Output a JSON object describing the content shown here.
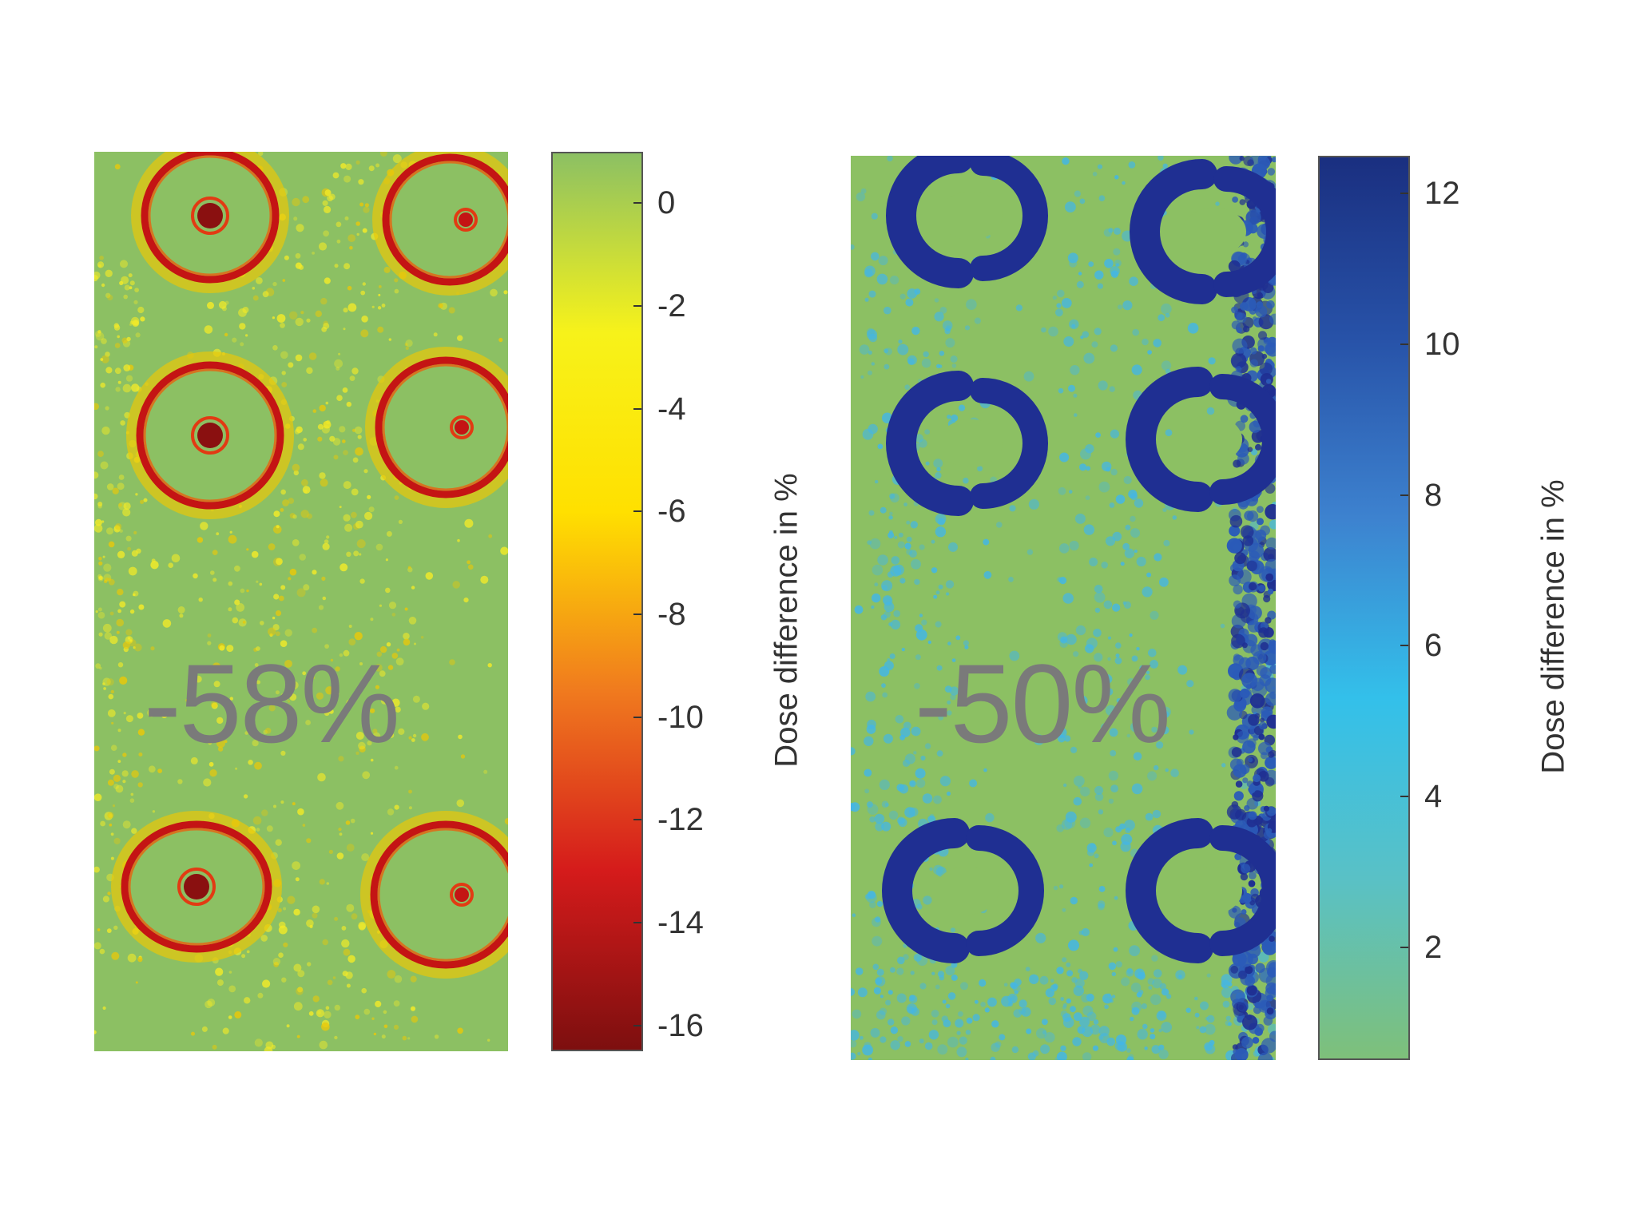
{
  "chart_data": [
    {
      "type": "heatmap",
      "title": "",
      "annotation": "-58%",
      "colorbar": {
        "label": "Dose difference in %",
        "range": [
          -16.5,
          1
        ],
        "ticks": [
          0,
          -2,
          -4,
          -6,
          -8,
          -10,
          -12,
          -14,
          -16
        ],
        "tick_labels": [
          "0",
          "-2",
          "-4",
          "-6",
          "-8",
          "-10",
          "-12",
          "-14",
          "-16"
        ],
        "colors": [
          "#7d0f0f",
          "#d51b1b",
          "#f07a1e",
          "#ffe000",
          "#f7f21a",
          "#8cc063"
        ],
        "scale": "linear"
      },
      "background_color": "#8cc063",
      "feature_colors": [
        "#c41414",
        "#e8c80a",
        "#f2ea28"
      ]
    },
    {
      "type": "heatmap",
      "title": "",
      "annotation": "-50%",
      "colorbar": {
        "label": "Dose difference in %",
        "range": [
          0.5,
          12.5
        ],
        "ticks": [
          2,
          4,
          6,
          8,
          10,
          12
        ],
        "tick_labels": [
          "2",
          "4",
          "6",
          "8",
          "10",
          "12"
        ],
        "colors": [
          "#7ec07a",
          "#59c1c6",
          "#33c0ea",
          "#3d82cf",
          "#2752a8",
          "#1a2f80"
        ],
        "scale": "linear"
      },
      "background_color": "#8cc063",
      "feature_colors": [
        "#1f2f92",
        "#2b5bb8",
        "#43b6e6"
      ]
    }
  ]
}
